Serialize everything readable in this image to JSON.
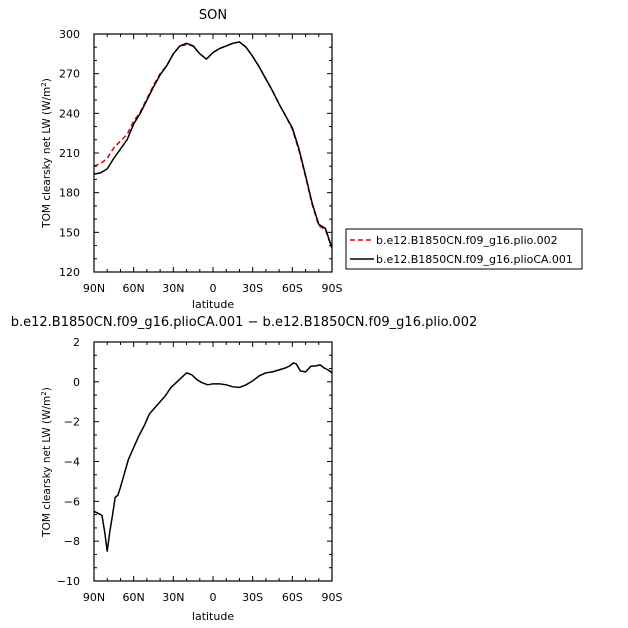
{
  "chart_data": [
    {
      "type": "line",
      "title": "SON",
      "xlabel": "latitude",
      "ylabel": "TOM clearsky net LW (W/m²)",
      "ylabel_main": "TOM clearsky net LW (W/m",
      "ylabel_sup": "2",
      "ylabel_close": ")",
      "xlim": [
        90,
        -90
      ],
      "ylim": [
        120,
        300
      ],
      "xticks": [
        90,
        60,
        30,
        0,
        -30,
        -60,
        -90
      ],
      "xticklabels": [
        "90N",
        "60N",
        "30N",
        "0",
        "30S",
        "60S",
        "90S"
      ],
      "yticks": [
        120,
        150,
        180,
        210,
        240,
        270,
        300
      ],
      "yticklabels": [
        "120",
        "150",
        "180",
        "210",
        "240",
        "270",
        "300"
      ],
      "legend_position": "right",
      "series": [
        {
          "name": "b.e12.B1850CN.f09_g16.plio.002",
          "color": "#dd0000",
          "dash": "dashed",
          "x": [
            90,
            85,
            80,
            75,
            70,
            65,
            60,
            55,
            50,
            45,
            40,
            35,
            30,
            25,
            20,
            15,
            10,
            5,
            0,
            -5,
            -10,
            -15,
            -20,
            -25,
            -30,
            -35,
            -40,
            -45,
            -50,
            -55,
            -60,
            -65,
            -70,
            -75,
            -80,
            -85,
            -90
          ],
          "values": [
            200,
            202,
            206,
            214,
            219,
            224,
            234,
            241,
            251,
            261,
            270,
            276,
            285,
            291,
            292,
            291,
            285,
            281,
            286,
            289,
            291,
            293,
            294,
            290,
            283,
            275,
            266,
            257,
            247,
            238,
            228,
            212,
            192,
            171,
            155,
            152,
            138
          ]
        },
        {
          "name": "b.e12.B1850CN.f09_g16.plioCA.001",
          "color": "#000000",
          "dash": "solid",
          "x": [
            90,
            85,
            80,
            75,
            70,
            65,
            60,
            55,
            50,
            45,
            40,
            35,
            30,
            25,
            20,
            15,
            10,
            5,
            0,
            -5,
            -10,
            -15,
            -20,
            -25,
            -30,
            -35,
            -40,
            -45,
            -50,
            -55,
            -60,
            -65,
            -70,
            -75,
            -80,
            -85,
            -90
          ],
          "values": [
            194,
            195,
            198,
            206,
            213,
            220,
            232,
            240,
            250,
            260,
            269,
            276,
            285,
            291,
            293,
            291,
            285,
            281,
            286,
            289,
            291,
            293,
            294,
            290,
            283,
            275,
            266,
            257,
            247,
            238,
            229,
            213,
            193,
            172,
            156,
            153,
            138
          ]
        }
      ]
    },
    {
      "type": "line",
      "title": "b.e12.B1850CN.f09_g16.plioCA.001 − b.e12.B1850CN.f09_g16.plio.002",
      "xlabel": "latitude",
      "ylabel": "TOM clearsky net LW (W/m²)",
      "ylabel_main": "TOM clearsky net LW (W/m",
      "ylabel_sup": "2",
      "ylabel_close": ")",
      "xlim": [
        90,
        -90
      ],
      "ylim": [
        -10,
        2
      ],
      "xticks": [
        90,
        60,
        30,
        0,
        -30,
        -60,
        -90
      ],
      "xticklabels": [
        "90N",
        "60N",
        "30N",
        "0",
        "30S",
        "60S",
        "90S"
      ],
      "yticks": [
        -10,
        -8,
        -6,
        -4,
        -2,
        0,
        2
      ],
      "yticklabels": [
        "−10",
        "−8",
        "−6",
        "−4",
        "−2",
        "0",
        "2"
      ],
      "series": [
        {
          "color": "#000000",
          "dash": "solid",
          "x": [
            90,
            87,
            84,
            82,
            80,
            78,
            76,
            74,
            72,
            70,
            67,
            64,
            60,
            56,
            52,
            48,
            44,
            40,
            36,
            32,
            28,
            24,
            20,
            16,
            12,
            8,
            4,
            0,
            -5,
            -10,
            -15,
            -20,
            -25,
            -30,
            -35,
            -40,
            -45,
            -50,
            -55,
            -58,
            -61,
            -63,
            -66,
            -70,
            -74,
            -78,
            -81,
            -84,
            -87,
            -90
          ],
          "values": [
            -6.5,
            -6.6,
            -6.7,
            -7.5,
            -8.5,
            -7.5,
            -6.7,
            -5.8,
            -5.7,
            -5.3,
            -4.6,
            -3.9,
            -3.3,
            -2.7,
            -2.2,
            -1.6,
            -1.3,
            -1.0,
            -0.7,
            -0.3,
            -0.05,
            0.2,
            0.45,
            0.35,
            0.1,
            -0.05,
            -0.15,
            -0.1,
            -0.1,
            -0.15,
            -0.25,
            -0.28,
            -0.15,
            0.05,
            0.3,
            0.45,
            0.5,
            0.6,
            0.7,
            0.8,
            0.95,
            0.9,
            0.55,
            0.5,
            0.78,
            0.8,
            0.85,
            0.7,
            0.6,
            0.45
          ]
        }
      ]
    }
  ]
}
